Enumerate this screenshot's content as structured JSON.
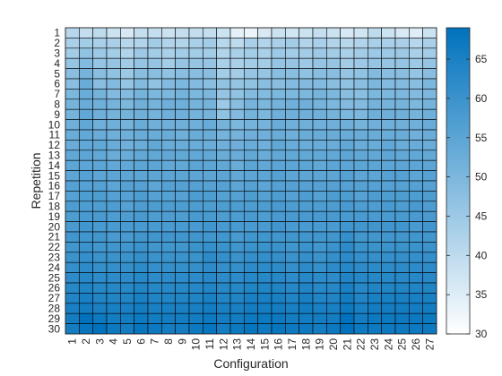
{
  "chart_data": {
    "type": "heatmap",
    "xlabel": "Configuration",
    "ylabel": "Repetition",
    "x_categories": [
      "1",
      "2",
      "3",
      "4",
      "5",
      "6",
      "7",
      "8",
      "9",
      "10",
      "11",
      "12",
      "13",
      "14",
      "15",
      "16",
      "17",
      "18",
      "19",
      "20",
      "21",
      "22",
      "23",
      "24",
      "25",
      "26",
      "27"
    ],
    "y_categories": [
      "1",
      "2",
      "3",
      "4",
      "5",
      "6",
      "7",
      "8",
      "9",
      "10",
      "11",
      "12",
      "13",
      "14",
      "15",
      "16",
      "17",
      "18",
      "19",
      "20",
      "21",
      "22",
      "23",
      "24",
      "25",
      "26",
      "27",
      "28",
      "29",
      "30"
    ],
    "colorbar": {
      "min": 30,
      "max": 69,
      "ticks": [
        30,
        35,
        40,
        45,
        50,
        55,
        60,
        65
      ],
      "colormap": [
        "#ffffff",
        "#0072bd"
      ]
    },
    "values": [
      [
        41,
        39,
        40,
        38,
        36,
        39,
        39,
        38,
        39,
        39,
        39,
        38,
        34,
        33,
        36,
        38,
        37,
        38,
        39,
        38,
        36,
        37,
        40,
        38,
        36,
        35,
        38
      ],
      [
        43,
        44,
        43,
        43,
        41,
        42,
        44,
        42,
        42,
        43,
        44,
        41,
        40,
        43,
        42,
        43,
        44,
        42,
        43,
        42,
        41,
        42,
        43,
        43,
        43,
        41,
        43
      ],
      [
        44,
        47,
        45,
        44,
        42,
        45,
        44,
        43,
        44,
        44,
        44,
        42,
        43,
        44,
        43,
        45,
        44,
        44,
        45,
        44,
        43,
        44,
        45,
        45,
        45,
        43,
        44
      ],
      [
        46,
        49,
        46,
        46,
        44,
        46,
        46,
        44,
        46,
        46,
        46,
        43,
        43,
        44,
        44,
        46,
        46,
        45,
        46,
        46,
        44,
        45,
        46,
        46,
        46,
        45,
        46
      ],
      [
        48,
        51,
        48,
        47,
        45,
        48,
        48,
        47,
        48,
        48,
        48,
        44,
        44,
        46,
        46,
        48,
        48,
        47,
        48,
        48,
        46,
        47,
        49,
        48,
        48,
        46,
        48
      ],
      [
        48,
        53,
        48,
        49,
        46,
        49,
        47,
        49,
        50,
        49,
        48,
        47,
        46,
        47,
        48,
        48,
        49,
        49,
        49,
        48,
        47,
        48,
        50,
        49,
        49,
        48,
        50
      ],
      [
        50,
        53,
        51,
        49,
        49,
        51,
        50,
        50,
        51,
        50,
        50,
        46,
        47,
        49,
        49,
        50,
        50,
        50,
        51,
        50,
        48,
        48,
        50,
        50,
        50,
        49,
        50
      ],
      [
        51,
        53,
        52,
        51,
        50,
        52,
        51,
        52,
        52,
        51,
        51,
        45,
        48,
        51,
        50,
        51,
        52,
        52,
        51,
        50,
        49,
        49,
        51,
        51,
        51,
        50,
        51
      ],
      [
        51,
        54,
        52,
        51,
        51,
        52,
        51,
        52,
        52,
        51,
        51,
        47,
        49,
        51,
        50,
        52,
        52,
        52,
        52,
        51,
        50,
        50,
        52,
        52,
        52,
        51,
        52
      ],
      [
        52,
        54,
        52,
        52,
        51,
        53,
        52,
        52,
        52,
        52,
        53,
        51,
        50,
        51,
        51,
        53,
        52,
        52,
        52,
        52,
        52,
        51,
        52,
        52,
        52,
        52,
        53
      ],
      [
        53,
        54,
        53,
        52,
        52,
        53,
        53,
        53,
        52,
        53,
        53,
        51,
        51,
        52,
        52,
        53,
        52,
        53,
        53,
        53,
        53,
        53,
        53,
        53,
        53,
        52,
        53
      ],
      [
        53,
        54,
        54,
        53,
        52,
        53,
        54,
        53,
        53,
        53,
        53,
        52,
        52,
        53,
        52,
        54,
        53,
        53,
        53,
        53,
        54,
        53,
        53,
        54,
        53,
        53,
        53
      ],
      [
        54,
        55,
        54,
        53,
        53,
        54,
        54,
        54,
        54,
        54,
        54,
        53,
        53,
        54,
        53,
        54,
        54,
        54,
        54,
        54,
        55,
        54,
        54,
        55,
        54,
        54,
        54
      ],
      [
        55,
        55,
        55,
        54,
        54,
        55,
        55,
        54,
        54,
        55,
        55,
        54,
        53,
        55,
        54,
        55,
        55,
        55,
        54,
        55,
        55,
        55,
        55,
        55,
        55,
        55,
        55
      ],
      [
        55,
        56,
        55,
        55,
        55,
        55,
        55,
        55,
        55,
        55,
        55,
        55,
        54,
        55,
        55,
        56,
        55,
        55,
        55,
        55,
        56,
        55,
        55,
        56,
        56,
        55,
        56
      ],
      [
        56,
        56,
        56,
        55,
        56,
        56,
        55,
        56,
        56,
        56,
        56,
        56,
        55,
        56,
        55,
        56,
        56,
        56,
        56,
        56,
        56,
        56,
        56,
        56,
        56,
        56,
        56
      ],
      [
        56,
        57,
        57,
        56,
        56,
        57,
        56,
        56,
        56,
        57,
        57,
        56,
        56,
        57,
        56,
        57,
        56,
        57,
        56,
        57,
        57,
        56,
        57,
        57,
        57,
        57,
        57
      ],
      [
        57,
        57,
        57,
        57,
        56,
        57,
        57,
        57,
        57,
        57,
        57,
        57,
        57,
        57,
        57,
        58,
        57,
        57,
        57,
        57,
        58,
        57,
        57,
        58,
        57,
        58,
        57
      ],
      [
        57,
        58,
        58,
        57,
        57,
        58,
        57,
        57,
        57,
        58,
        58,
        57,
        57,
        58,
        57,
        58,
        58,
        58,
        58,
        58,
        58,
        58,
        58,
        58,
        58,
        58,
        58
      ],
      [
        58,
        59,
        58,
        58,
        58,
        58,
        58,
        58,
        58,
        58,
        59,
        58,
        58,
        58,
        58,
        59,
        58,
        58,
        58,
        58,
        59,
        59,
        59,
        59,
        59,
        58,
        59
      ],
      [
        59,
        59,
        59,
        58,
        58,
        59,
        59,
        59,
        59,
        59,
        59,
        59,
        58,
        59,
        59,
        59,
        59,
        59,
        59,
        59,
        61,
        59,
        59,
        59,
        59,
        59,
        59
      ],
      [
        59,
        60,
        59,
        59,
        59,
        60,
        59,
        59,
        59,
        60,
        61,
        60,
        59,
        60,
        60,
        60,
        59,
        60,
        59,
        60,
        62,
        60,
        60,
        60,
        60,
        60,
        60
      ],
      [
        60,
        61,
        60,
        60,
        60,
        61,
        60,
        60,
        60,
        60,
        62,
        61,
        60,
        61,
        61,
        61,
        60,
        61,
        60,
        61,
        62,
        61,
        61,
        61,
        61,
        61,
        61
      ],
      [
        61,
        62,
        61,
        61,
        61,
        62,
        61,
        61,
        61,
        61,
        62,
        61,
        61,
        62,
        62,
        62,
        61,
        62,
        61,
        62,
        63,
        62,
        62,
        62,
        62,
        62,
        62
      ],
      [
        62,
        63,
        62,
        62,
        62,
        63,
        62,
        62,
        62,
        62,
        63,
        62,
        62,
        63,
        63,
        63,
        62,
        63,
        62,
        62,
        64,
        63,
        63,
        63,
        63,
        63,
        63
      ],
      [
        63,
        64,
        63,
        63,
        63,
        64,
        63,
        63,
        63,
        63,
        64,
        63,
        63,
        64,
        64,
        64,
        63,
        64,
        63,
        63,
        65,
        63,
        64,
        64,
        64,
        64,
        64
      ],
      [
        64,
        65,
        64,
        64,
        64,
        65,
        64,
        64,
        64,
        64,
        65,
        64,
        64,
        65,
        65,
        65,
        64,
        65,
        64,
        64,
        66,
        64,
        65,
        65,
        65,
        65,
        65
      ],
      [
        65,
        66,
        65,
        65,
        65,
        66,
        65,
        65,
        65,
        65,
        66,
        65,
        65,
        66,
        66,
        66,
        65,
        66,
        65,
        65,
        67,
        65,
        66,
        66,
        66,
        66,
        66
      ],
      [
        66,
        69,
        67,
        66,
        66,
        67,
        66,
        66,
        66,
        66,
        67,
        66,
        66,
        67,
        67,
        67,
        66,
        66,
        66,
        66,
        69,
        66,
        67,
        67,
        67,
        67,
        67
      ],
      [
        66,
        68,
        69,
        67,
        66,
        68,
        67,
        66,
        66,
        67,
        68,
        66,
        67,
        68,
        67,
        68,
        67,
        67,
        66,
        67,
        69,
        67,
        67,
        67,
        67,
        67,
        67
      ]
    ]
  }
}
